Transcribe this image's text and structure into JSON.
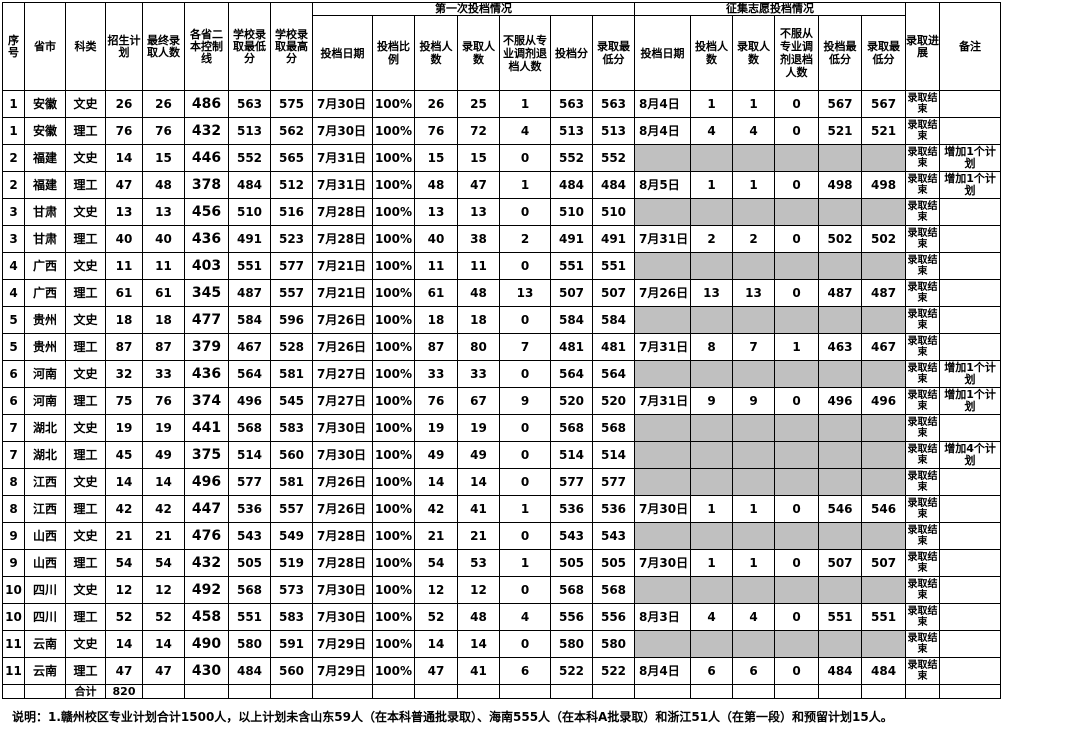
{
  "header": {
    "columns": [
      "序号",
      "省市",
      "科类",
      "招生计划",
      "最终录取人数",
      "各省二本控制线",
      "学校录取最低分",
      "学校录取最高分"
    ],
    "first_group": {
      "title": "第一次投档情况",
      "columns": [
        "投档日期",
        "投档比例",
        "投档人数",
        "录取人数",
        "不服从专业调剂退档人数",
        "投档分",
        "录取最低分"
      ]
    },
    "second_group": {
      "title": "征集志愿投档情况",
      "columns": [
        "投档日期",
        "投档人数",
        "录取人数",
        "不服从专业调剂退档人数",
        "投档最低分",
        "录取最低分"
      ]
    },
    "tail_columns": [
      "录取进展",
      "备注"
    ]
  },
  "rows": [
    {
      "cells": [
        1,
        "安徽",
        "文史",
        26,
        26,
        486,
        563,
        575,
        "7月30日",
        "100%",
        26,
        25,
        1,
        563,
        563
      ],
      "second": [
        "8月4日",
        1,
        1,
        0,
        567,
        567
      ],
      "progress": "录取结束"
    },
    {
      "cells": [
        1,
        "安徽",
        "理工",
        76,
        76,
        432,
        513,
        562,
        "7月30日",
        "100%",
        76,
        72,
        4,
        513,
        513
      ],
      "second": [
        "8月4日",
        4,
        4,
        0,
        521,
        521
      ],
      "progress": "录取结束"
    },
    {
      "cells": [
        2,
        "福建",
        "文史",
        14,
        15,
        446,
        552,
        565,
        "7月31日",
        "100%",
        15,
        15,
        0,
        552,
        552
      ],
      "second": null,
      "progress": "录取结束",
      "note": "增加1个计划"
    },
    {
      "cells": [
        2,
        "福建",
        "理工",
        47,
        48,
        378,
        484,
        512,
        "7月31日",
        "100%",
        48,
        47,
        1,
        484,
        484
      ],
      "second": [
        "8月5日",
        1,
        1,
        0,
        498,
        498
      ],
      "progress": "录取结束",
      "note": "增加1个计划"
    },
    {
      "cells": [
        3,
        "甘肃",
        "文史",
        13,
        13,
        456,
        510,
        516,
        "7月28日",
        "100%",
        13,
        13,
        0,
        510,
        510
      ],
      "second": null,
      "progress": "录取结束"
    },
    {
      "cells": [
        3,
        "甘肃",
        "理工",
        40,
        40,
        436,
        491,
        523,
        "7月28日",
        "100%",
        40,
        38,
        2,
        491,
        491
      ],
      "second": [
        "7月31日",
        2,
        2,
        0,
        502,
        502
      ],
      "progress": "录取结束"
    },
    {
      "cells": [
        4,
        "广西",
        "文史",
        11,
        11,
        403,
        551,
        577,
        "7月21日",
        "100%",
        11,
        11,
        0,
        551,
        551
      ],
      "second": null,
      "progress": "录取结束"
    },
    {
      "cells": [
        4,
        "广西",
        "理工",
        61,
        61,
        345,
        487,
        557,
        "7月21日",
        "100%",
        61,
        48,
        13,
        507,
        507
      ],
      "second": [
        "7月26日",
        13,
        13,
        0,
        487,
        487
      ],
      "progress": "录取结束"
    },
    {
      "cells": [
        5,
        "贵州",
        "文史",
        18,
        18,
        477,
        584,
        596,
        "7月26日",
        "100%",
        18,
        18,
        0,
        584,
        584
      ],
      "second": null,
      "progress": "录取结束"
    },
    {
      "cells": [
        5,
        "贵州",
        "理工",
        87,
        87,
        379,
        467,
        528,
        "7月26日",
        "100%",
        87,
        80,
        7,
        481,
        481
      ],
      "second": [
        "7月31日",
        8,
        7,
        1,
        463,
        467
      ],
      "progress": "录取结束"
    },
    {
      "cells": [
        6,
        "河南",
        "文史",
        32,
        33,
        436,
        564,
        581,
        "7月27日",
        "100%",
        33,
        33,
        0,
        564,
        564
      ],
      "second": null,
      "progress": "录取结束",
      "note": "增加1个计划"
    },
    {
      "cells": [
        6,
        "河南",
        "理工",
        75,
        76,
        374,
        496,
        545,
        "7月27日",
        "100%",
        76,
        67,
        9,
        520,
        520
      ],
      "second": [
        "7月31日",
        9,
        9,
        0,
        496,
        496
      ],
      "progress": "录取结束",
      "note": "增加1个计划"
    },
    {
      "cells": [
        7,
        "湖北",
        "文史",
        19,
        19,
        441,
        568,
        583,
        "7月30日",
        "100%",
        19,
        19,
        0,
        568,
        568
      ],
      "second": null,
      "progress": "录取结束"
    },
    {
      "cells": [
        7,
        "湖北",
        "理工",
        45,
        49,
        375,
        514,
        560,
        "7月30日",
        "100%",
        49,
        49,
        0,
        514,
        514
      ],
      "second": null,
      "progress": "录取结束",
      "note": "增加4个计划"
    },
    {
      "cells": [
        8,
        "江西",
        "文史",
        14,
        14,
        496,
        577,
        581,
        "7月26日",
        "100%",
        14,
        14,
        0,
        577,
        577
      ],
      "second": null,
      "progress": "录取结束"
    },
    {
      "cells": [
        8,
        "江西",
        "理工",
        42,
        42,
        447,
        536,
        557,
        "7月26日",
        "100%",
        42,
        41,
        1,
        536,
        536
      ],
      "second": [
        "7月30日",
        1,
        1,
        0,
        546,
        546
      ],
      "progress": "录取结束"
    },
    {
      "cells": [
        9,
        "山西",
        "文史",
        21,
        21,
        476,
        543,
        549,
        "7月28日",
        "100%",
        21,
        21,
        0,
        543,
        543
      ],
      "second": null,
      "progress": "录取结束"
    },
    {
      "cells": [
        9,
        "山西",
        "理工",
        54,
        54,
        432,
        505,
        519,
        "7月28日",
        "100%",
        54,
        53,
        1,
        505,
        505
      ],
      "second": [
        "7月30日",
        1,
        1,
        0,
        507,
        507
      ],
      "progress": "录取结束"
    },
    {
      "cells": [
        10,
        "四川",
        "文史",
        12,
        12,
        492,
        568,
        573,
        "7月30日",
        "100%",
        12,
        12,
        0,
        568,
        568
      ],
      "second": null,
      "progress": "录取结束"
    },
    {
      "cells": [
        10,
        "四川",
        "理工",
        52,
        52,
        458,
        551,
        583,
        "7月30日",
        "100%",
        52,
        48,
        4,
        556,
        556
      ],
      "second": [
        "8月3日",
        4,
        4,
        0,
        551,
        551
      ],
      "progress": "录取结束"
    },
    {
      "cells": [
        11,
        "云南",
        "文史",
        14,
        14,
        490,
        580,
        591,
        "7月29日",
        "100%",
        14,
        14,
        0,
        580,
        580
      ],
      "second": null,
      "progress": "录取结束"
    },
    {
      "cells": [
        11,
        "云南",
        "理工",
        47,
        47,
        430,
        484,
        560,
        "7月29日",
        "100%",
        47,
        41,
        6,
        522,
        522
      ],
      "second": [
        "8月4日",
        6,
        6,
        0,
        484,
        484
      ],
      "progress": "录取结束"
    }
  ],
  "total": {
    "label": "合计",
    "value": 820
  },
  "footnote": "说明：1.赣州校区专业计划合计1500人，以上计划未含山东59人（在本科普通批录取）、海南555人（在本科A批录取）和浙江51人（在第一段）和预留计划15人。"
}
